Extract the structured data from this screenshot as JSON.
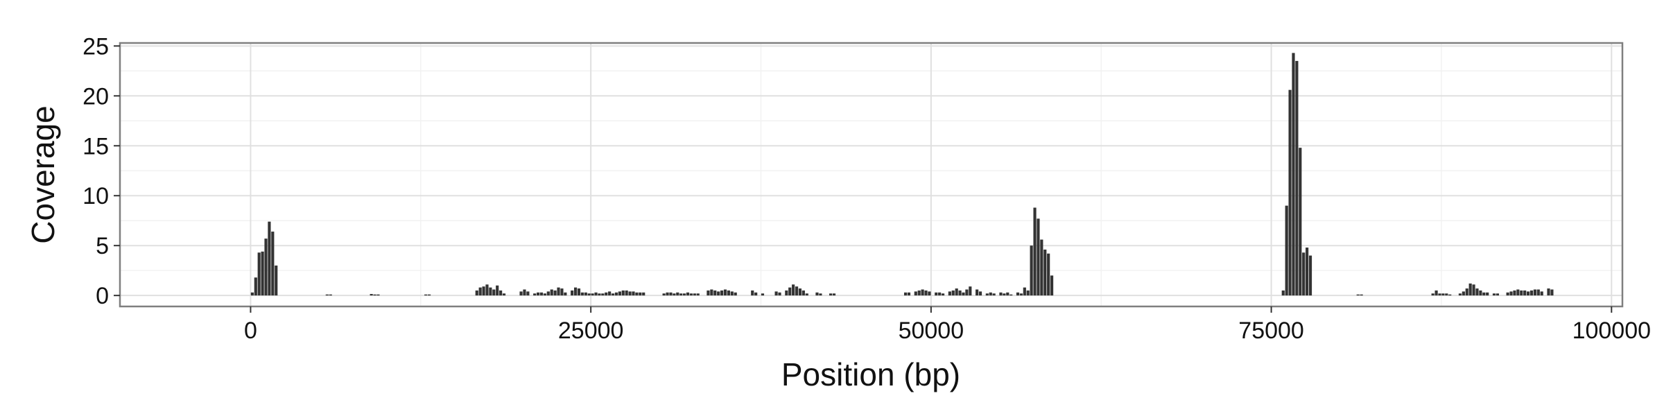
{
  "chart_data": {
    "type": "bar",
    "title": "",
    "xlabel": "Position (bp)",
    "ylabel": "Coverage",
    "xlim": [
      -9600,
      100800
    ],
    "ylim": [
      -1.1,
      25.3
    ],
    "x_ticks": [
      0,
      25000,
      50000,
      75000,
      100000
    ],
    "x_tick_labels": [
      "0",
      "25000",
      "50000",
      "75000",
      "100000"
    ],
    "y_ticks": [
      0,
      5,
      10,
      15,
      20,
      25
    ],
    "y_tick_labels": [
      "0",
      "5",
      "10",
      "15",
      "20",
      "25"
    ],
    "grid": true,
    "legend": "none",
    "bin_width": 250,
    "colors": {
      "bar": "#333333",
      "panel_border": "#7f7f7f",
      "grid_major": "#e0e0e0",
      "grid_minor": "#f2f2f2"
    },
    "series": [
      {
        "x": [
          0,
          250,
          500,
          750,
          1000,
          1250,
          1500,
          1750,
          5500,
          5750,
          8750,
          9000,
          9250,
          12750,
          13000,
          16500,
          16750,
          17000,
          17250,
          17500,
          17750,
          18000,
          18250,
          18500,
          19750,
          20000,
          20250,
          20750,
          21000,
          21250,
          21500,
          21750,
          22000,
          22250,
          22500,
          22750,
          23000,
          23500,
          23750,
          24000,
          24250,
          24500,
          24750,
          25000,
          25250,
          25500,
          25750,
          26000,
          26250,
          26500,
          26750,
          27000,
          27250,
          27500,
          27750,
          28000,
          28250,
          28500,
          28750,
          30250,
          30500,
          30750,
          31000,
          31250,
          31500,
          31750,
          32000,
          32250,
          32500,
          32750,
          33500,
          33750,
          34000,
          34250,
          34500,
          34750,
          35000,
          35250,
          35500,
          36750,
          37000,
          37500,
          38500,
          38750,
          39250,
          39500,
          39750,
          40000,
          40250,
          40500,
          40750,
          41500,
          41750,
          42500,
          42750,
          48000,
          48250,
          48750,
          49000,
          49250,
          49500,
          49750,
          50250,
          50500,
          50750,
          51250,
          51500,
          51750,
          52000,
          52250,
          52500,
          52750,
          53250,
          53500,
          54000,
          54250,
          54500,
          55000,
          55250,
          55500,
          55750,
          56250,
          56500,
          56750,
          57000,
          57250,
          57500,
          57750,
          58000,
          58250,
          58500,
          58750,
          75750,
          76000,
          76250,
          76500,
          76750,
          77000,
          77250,
          77500,
          77750,
          81250,
          81500,
          86750,
          87000,
          87250,
          87500,
          87750,
          88000,
          88750,
          89000,
          89250,
          89500,
          89750,
          90000,
          90250,
          90500,
          90750,
          91250,
          91500,
          92250,
          92500,
          92750,
          93000,
          93250,
          93500,
          93750,
          94000,
          94250,
          94500,
          94750,
          95250,
          95500
        ],
        "values": [
          0.3,
          1.8,
          4.3,
          4.4,
          5.7,
          7.4,
          6.4,
          3.0,
          0.1,
          0.1,
          0.15,
          0.1,
          0.1,
          0.1,
          0.1,
          0.5,
          0.8,
          0.9,
          1.1,
          0.8,
          0.6,
          1.0,
          0.5,
          0.2,
          0.4,
          0.6,
          0.4,
          0.2,
          0.3,
          0.3,
          0.2,
          0.4,
          0.6,
          0.5,
          0.8,
          0.7,
          0.3,
          0.5,
          0.8,
          0.7,
          0.3,
          0.3,
          0.2,
          0.2,
          0.3,
          0.2,
          0.2,
          0.3,
          0.4,
          0.2,
          0.3,
          0.4,
          0.5,
          0.5,
          0.4,
          0.4,
          0.3,
          0.3,
          0.3,
          0.2,
          0.3,
          0.3,
          0.2,
          0.3,
          0.2,
          0.2,
          0.3,
          0.2,
          0.2,
          0.2,
          0.5,
          0.6,
          0.5,
          0.4,
          0.5,
          0.6,
          0.5,
          0.4,
          0.3,
          0.5,
          0.3,
          0.2,
          0.4,
          0.3,
          0.5,
          0.8,
          1.1,
          0.9,
          0.7,
          0.5,
          0.2,
          0.3,
          0.2,
          0.2,
          0.2,
          0.3,
          0.3,
          0.4,
          0.5,
          0.6,
          0.5,
          0.4,
          0.3,
          0.3,
          0.2,
          0.4,
          0.5,
          0.7,
          0.5,
          0.3,
          0.6,
          0.9,
          0.6,
          0.4,
          0.2,
          0.3,
          0.2,
          0.3,
          0.2,
          0.3,
          0.1,
          0.3,
          0.2,
          0.8,
          0.5,
          5.0,
          8.8,
          7.7,
          5.6,
          4.6,
          4.2,
          2.0,
          0.5,
          9.0,
          20.6,
          24.3,
          23.5,
          14.8,
          4.3,
          4.8,
          4.0,
          0.1,
          0.1,
          0.2,
          0.5,
          0.2,
          0.2,
          0.2,
          0.1,
          0.2,
          0.4,
          0.7,
          1.2,
          1.1,
          0.7,
          0.5,
          0.3,
          0.3,
          0.2,
          0.2,
          0.3,
          0.4,
          0.5,
          0.6,
          0.5,
          0.5,
          0.4,
          0.5,
          0.6,
          0.6,
          0.4,
          0.7,
          0.6
        ]
      }
    ]
  }
}
